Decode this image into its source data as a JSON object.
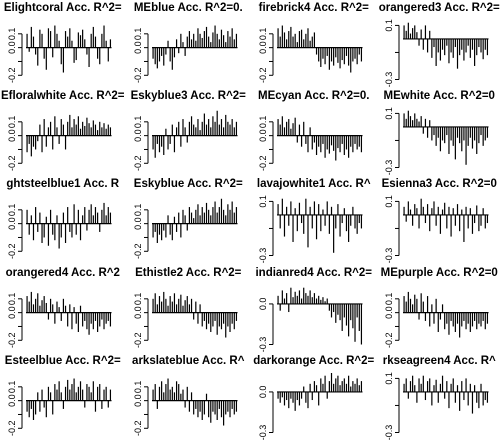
{
  "chart_data": [
    {
      "type": "bar",
      "title": "Elightcoral Acc. R^2=",
      "ylim": [
        -0.25,
        0.2
      ],
      "yticks": [
        -0.2,
        -0.1,
        0.0,
        0.1
      ],
      "ytick_labels": [
        "-0.2",
        "",
        "0.0",
        "0.1"
      ],
      "values": [
        0.1,
        -0.03,
        0.15,
        0.08,
        -0.05,
        -0.13,
        0.13,
        0.1,
        -0.08,
        -0.16,
        0.14,
        0.12,
        -0.07,
        0.16,
        0.1,
        0.05,
        -0.12,
        -0.18,
        0.12,
        0.08,
        0.14,
        0.05,
        -0.11,
        -0.09,
        0.11,
        0.09,
        0.13,
        0.06,
        -0.05,
        -0.14,
        0.1,
        0.15,
        0.08,
        -0.08,
        -0.12,
        0.1,
        0.16,
        0.05,
        -0.1,
        0.06
      ]
    },
    {
      "type": "bar",
      "title": "MEblue Acc. R^2=0.",
      "ylim": [
        -0.25,
        0.2
      ],
      "yticks": [
        -0.2,
        -0.1,
        0.0,
        0.1
      ],
      "ytick_labels": [
        "-0.2",
        "",
        "0.0",
        "0.1"
      ],
      "values": [
        -0.08,
        -0.12,
        -0.15,
        -0.1,
        -0.06,
        -0.13,
        -0.05,
        0.05,
        -0.1,
        -0.16,
        -0.07,
        0.06,
        -0.04,
        0.1,
        0.04,
        -0.06,
        0.08,
        0.12,
        0.06,
        0.1,
        0.05,
        0.14,
        0.1,
        0.07,
        0.12,
        0.15,
        0.08,
        0.04,
        0.11,
        0.16,
        0.1,
        0.06,
        0.13,
        0.09,
        0.04,
        0.12,
        0.08,
        0.14,
        0.06,
        0.1
      ]
    },
    {
      "type": "bar",
      "title": "firebrick4 Acc. R^2=",
      "ylim": [
        -0.25,
        0.2
      ],
      "yticks": [
        -0.2,
        -0.1,
        0.0,
        0.1
      ],
      "ytick_labels": [
        "-0.2",
        "",
        "0.0",
        "0.1"
      ],
      "values": [
        0.14,
        0.08,
        0.16,
        0.11,
        0.06,
        0.12,
        0.15,
        0.08,
        0.1,
        0.04,
        0.12,
        0.13,
        0.06,
        0.1,
        0.14,
        0.05,
        0.08,
        0.11,
        -0.05,
        -0.1,
        -0.14,
        -0.08,
        -0.12,
        -0.06,
        -0.16,
        -0.1,
        -0.13,
        -0.07,
        -0.11,
        -0.15,
        -0.09,
        -0.12,
        -0.06,
        -0.13,
        -0.18,
        -0.1,
        -0.08,
        -0.12,
        -0.05,
        -0.1
      ]
    },
    {
      "type": "bar",
      "title": "orangered3 Acc. R^2=",
      "ylim": [
        -0.32,
        0.14
      ],
      "yticks": [
        -0.3,
        -0.1,
        0.1
      ],
      "ytick_labels": [
        "-0.3",
        "",
        "0.1"
      ],
      "values": [
        0.1,
        0.06,
        0.12,
        0.04,
        0.08,
        0.1,
        0.05,
        -0.05,
        0.07,
        -0.08,
        0.1,
        -0.1,
        0.06,
        -0.14,
        -0.06,
        -0.2,
        -0.1,
        -0.16,
        -0.08,
        -0.12,
        -0.05,
        -0.18,
        -0.1,
        -0.14,
        -0.06,
        -0.22,
        -0.12,
        -0.08,
        -0.16,
        -0.1,
        -0.05,
        -0.14,
        -0.08,
        -0.2,
        -0.12,
        -0.06,
        -0.1,
        -0.15,
        -0.08,
        -0.12
      ]
    },
    {
      "type": "bar",
      "title": "Efloralwhite Acc. R^2=",
      "ylim": [
        -0.25,
        0.2
      ],
      "yticks": [
        -0.2,
        -0.1,
        0.0,
        0.1
      ],
      "ytick_labels": [
        "-0.2",
        "",
        "0.0",
        "0.1"
      ],
      "values": [
        -0.12,
        -0.06,
        -0.15,
        -0.08,
        -0.1,
        -0.04,
        0.08,
        -0.12,
        0.12,
        -0.08,
        0.06,
        0.1,
        -0.1,
        0.14,
        0.06,
        -0.06,
        0.12,
        0.08,
        -0.1,
        0.1,
        0.15,
        0.06,
        0.12,
        0.08,
        0.14,
        0.05,
        0.1,
        0.07,
        0.13,
        0.09,
        0.06,
        0.11,
        0.08,
        0.04,
        0.1,
        0.06,
        0.09,
        0.05,
        0.08,
        0.06
      ]
    },
    {
      "type": "bar",
      "title": "Eskyblue3 Acc. R^2= ",
      "ylim": [
        -0.25,
        0.2
      ],
      "yticks": [
        -0.2,
        -0.1,
        0.0,
        0.1
      ],
      "ytick_labels": [
        "-0.2",
        "",
        "0.0",
        "0.1"
      ],
      "values": [
        -0.1,
        -0.16,
        -0.06,
        -0.12,
        -0.08,
        -0.14,
        0.05,
        -0.1,
        -0.06,
        0.08,
        -0.12,
        0.06,
        0.1,
        -0.08,
        0.12,
        0.06,
        -0.05,
        0.1,
        0.14,
        0.08,
        0.06,
        0.12,
        0.04,
        0.1,
        0.16,
        0.08,
        0.12,
        0.06,
        0.14,
        0.1,
        0.18,
        0.08,
        0.12,
        0.06,
        0.15,
        0.1,
        0.08,
        0.12,
        0.06,
        0.1
      ]
    },
    {
      "type": "bar",
      "title": "MEcyan Acc. R^2=0.",
      "ylim": [
        -0.25,
        0.2
      ],
      "yticks": [
        -0.2,
        -0.1,
        0.0,
        0.1
      ],
      "ytick_labels": [
        "-0.2",
        "",
        "0.0",
        "0.1"
      ],
      "values": [
        0.12,
        0.08,
        0.14,
        0.06,
        0.1,
        0.12,
        0.05,
        0.09,
        0.13,
        -0.05,
        0.08,
        -0.08,
        0.1,
        -0.06,
        -0.12,
        0.06,
        -0.1,
        -0.05,
        -0.14,
        -0.08,
        -0.12,
        -0.06,
        -0.16,
        -0.1,
        -0.13,
        -0.07,
        -0.11,
        -0.18,
        -0.09,
        -0.12,
        -0.06,
        -0.14,
        -0.1,
        -0.16,
        -0.08,
        -0.12,
        -0.06,
        -0.1,
        -0.08,
        -0.12
      ]
    },
    {
      "type": "bar",
      "title": "MEwhite Acc. R^2=0",
      "ylim": [
        -0.32,
        0.14
      ],
      "yticks": [
        -0.3,
        -0.1,
        0.1
      ],
      "ytick_labels": [
        "-0.3",
        "",
        "0.1"
      ],
      "values": [
        0.1,
        0.06,
        0.12,
        0.08,
        0.05,
        0.1,
        0.06,
        0.04,
        0.08,
        -0.05,
        0.06,
        -0.08,
        0.05,
        -0.1,
        -0.06,
        -0.14,
        -0.08,
        -0.18,
        -0.1,
        -0.12,
        -0.06,
        -0.2,
        -0.1,
        -0.14,
        -0.24,
        -0.08,
        -0.12,
        -0.18,
        -0.1,
        -0.28,
        -0.14,
        -0.08,
        -0.16,
        -0.1,
        -0.2,
        -0.12,
        -0.06,
        -0.14,
        -0.1,
        -0.08
      ]
    },
    {
      "type": "bar",
      "title": "ghtsteelblue1 Acc. R",
      "ylim": [
        -0.25,
        0.2
      ],
      "yticks": [
        -0.2,
        -0.1,
        0.0,
        0.1
      ],
      "ytick_labels": [
        "-0.2",
        "",
        "0.0",
        "0.1"
      ],
      "values": [
        0.1,
        -0.08,
        0.06,
        -0.12,
        0.12,
        -0.06,
        0.08,
        -0.14,
        -0.1,
        0.05,
        -0.16,
        0.1,
        -0.08,
        -0.12,
        0.06,
        -0.18,
        -0.1,
        0.08,
        -0.14,
        0.12,
        -0.06,
        -0.1,
        0.14,
        -0.08,
        0.1,
        -0.12,
        0.06,
        0.12,
        -0.05,
        0.1,
        0.14,
        0.06,
        0.12,
        0.08,
        -0.06,
        0.1,
        0.15,
        0.06,
        0.12,
        0.08
      ]
    },
    {
      "type": "bar",
      "title": "Eskyblue Acc. R^2=",
      "ylim": [
        -0.25,
        0.2
      ],
      "yticks": [
        -0.2,
        -0.1,
        0.0,
        0.1
      ],
      "ytick_labels": [
        "-0.2",
        "",
        "0.0",
        "0.1"
      ],
      "values": [
        -0.1,
        -0.06,
        -0.14,
        -0.08,
        -0.12,
        -0.05,
        -0.1,
        0.06,
        -0.08,
        -0.12,
        0.05,
        -0.06,
        0.08,
        -0.1,
        0.1,
        0.06,
        -0.05,
        0.12,
        0.08,
        0.04,
        0.1,
        0.14,
        0.06,
        0.12,
        0.08,
        0.15,
        0.1,
        0.06,
        0.12,
        0.16,
        0.08,
        0.12,
        0.18,
        0.1,
        0.06,
        0.14,
        0.1,
        0.16,
        0.08,
        0.12
      ]
    },
    {
      "type": "bar",
      "title": "lavajowhite1 Acc. R^",
      "ylim": [
        -0.32,
        0.14
      ],
      "yticks": [
        -0.3,
        -0.1,
        0.1
      ],
      "ytick_labels": [
        "-0.3",
        "",
        "0.1"
      ],
      "values": [
        0.08,
        -0.1,
        0.12,
        -0.16,
        0.06,
        -0.08,
        0.1,
        -0.2,
        0.05,
        -0.12,
        0.09,
        -0.06,
        -0.14,
        0.12,
        -0.24,
        0.06,
        -0.1,
        0.1,
        -0.18,
        0.08,
        -0.12,
        0.04,
        -0.08,
        0.1,
        -0.14,
        0.06,
        -0.28,
        -0.1,
        0.08,
        -0.16,
        -0.06,
        0.05,
        -0.12,
        -0.2,
        -0.08,
        0.06,
        -0.1,
        -0.14,
        -0.06,
        -0.1
      ]
    },
    {
      "type": "bar",
      "title": "Esienna3 Acc. R^2=0",
      "ylim": [
        -0.32,
        0.14
      ],
      "yticks": [
        -0.3,
        -0.1,
        0.1
      ],
      "ytick_labels": [
        "-0.3",
        "",
        "0.1"
      ],
      "values": [
        0.06,
        -0.05,
        0.1,
        0.04,
        -0.08,
        0.08,
        0.05,
        -0.1,
        0.12,
        0.06,
        -0.06,
        0.08,
        -0.12,
        0.05,
        0.1,
        -0.08,
        0.06,
        -0.14,
        0.04,
        0.09,
        -0.1,
        0.06,
        -0.16,
        0.05,
        -0.08,
        0.08,
        -0.12,
        0.04,
        -0.2,
        0.06,
        -0.1,
        0.05,
        -0.14,
        -0.06,
        0.07,
        -0.12,
        -0.08,
        0.05,
        -0.1,
        -0.06
      ]
    },
    {
      "type": "bar",
      "title": "orangered4 Acc. R^2",
      "ylim": [
        -0.25,
        0.2
      ],
      "yticks": [
        -0.2,
        -0.1,
        0.0,
        0.1
      ],
      "ytick_labels": [
        "-0.2",
        "",
        "0.0",
        "0.1"
      ],
      "values": [
        0.12,
        0.08,
        0.15,
        0.06,
        0.1,
        0.14,
        0.05,
        0.09,
        0.12,
        0.07,
        -0.05,
        0.1,
        0.06,
        -0.08,
        0.08,
        0.04,
        -0.06,
        0.1,
        0.05,
        -0.1,
        0.06,
        -0.12,
        0.04,
        -0.08,
        -0.14,
        0.05,
        -0.1,
        -0.06,
        -0.12,
        -0.16,
        -0.08,
        -0.12,
        -0.06,
        -0.14,
        -0.1,
        -0.05,
        -0.12,
        -0.08,
        -0.06,
        -0.1
      ]
    },
    {
      "type": "bar",
      "title": "Ethistle2 Acc. R^2=",
      "ylim": [
        -0.25,
        0.2
      ],
      "yticks": [
        -0.2,
        -0.1,
        0.0,
        0.1
      ],
      "ytick_labels": [
        "-0.2",
        "",
        "0.0",
        "0.1"
      ],
      "values": [
        0.1,
        0.14,
        0.06,
        0.12,
        0.08,
        0.15,
        0.1,
        0.05,
        0.12,
        0.08,
        0.14,
        0.06,
        0.1,
        0.13,
        0.05,
        0.09,
        0.12,
        0.06,
        0.1,
        -0.05,
        0.08,
        -0.08,
        0.06,
        -0.1,
        -0.06,
        -0.12,
        -0.08,
        -0.14,
        -0.1,
        -0.06,
        -0.16,
        -0.1,
        -0.12,
        -0.08,
        -0.18,
        -0.1,
        -0.14,
        -0.08,
        -0.12,
        -0.06
      ]
    },
    {
      "type": "bar",
      "title": "indianred4 Acc. R^2=",
      "ylim": [
        -0.32,
        0.14
      ],
      "yticks": [
        -0.3,
        0.0
      ],
      "ytick_labels": [
        "-0.3",
        "0.0"
      ],
      "values": [
        0.06,
        -0.05,
        0.1,
        0.04,
        0.08,
        -0.06,
        0.12,
        0.05,
        0.09,
        0.06,
        0.1,
        0.04,
        0.12,
        0.08,
        0.06,
        0.1,
        0.05,
        0.08,
        0.04,
        0.06,
        0.03,
        0.05,
        0.02,
        0.04,
        -0.05,
        -0.1,
        -0.06,
        -0.14,
        -0.08,
        -0.12,
        -0.2,
        -0.1,
        -0.16,
        -0.24,
        -0.12,
        -0.18,
        -0.28,
        -0.1,
        -0.2,
        -0.3
      ]
    },
    {
      "type": "bar",
      "title": "MEpurple Acc. R^2=0",
      "ylim": [
        -0.25,
        0.2
      ],
      "yticks": [
        -0.2,
        -0.1,
        0.0,
        0.1
      ],
      "ytick_labels": [
        "-0.2",
        "",
        "0.0",
        "0.1"
      ],
      "values": [
        0.12,
        0.08,
        0.15,
        0.1,
        0.06,
        0.13,
        0.1,
        -0.05,
        0.14,
        0.08,
        -0.06,
        0.12,
        -0.1,
        0.06,
        -0.08,
        0.1,
        -0.14,
        -0.05,
        0.06,
        -0.12,
        -0.08,
        -0.16,
        -0.06,
        -0.1,
        -0.14,
        -0.08,
        -0.18,
        -0.1,
        -0.06,
        -0.12,
        -0.08,
        -0.14,
        -0.1,
        -0.06,
        -0.12,
        -0.08,
        -0.1,
        -0.06,
        -0.12,
        -0.08
      ]
    },
    {
      "type": "bar",
      "title": "Esteelblue Acc. R^2=",
      "ylim": [
        -0.25,
        0.2
      ],
      "yticks": [
        -0.2,
        -0.1,
        0.0,
        0.1
      ],
      "ytick_labels": [
        "-0.2",
        "",
        "0.0",
        "0.1"
      ],
      "values": [
        -0.08,
        -0.12,
        -0.06,
        -0.14,
        -0.1,
        0.06,
        -0.08,
        0.08,
        -0.05,
        -0.12,
        0.1,
        0.06,
        -0.1,
        0.12,
        0.08,
        0.14,
        0.06,
        -0.06,
        0.1,
        0.15,
        0.08,
        0.12,
        0.16,
        0.06,
        0.1,
        0.14,
        0.08,
        -0.05,
        0.12,
        0.1,
        0.06,
        0.14,
        -0.08,
        0.1,
        0.12,
        -0.06,
        0.08,
        0.1,
        -0.05,
        0.08
      ]
    },
    {
      "type": "bar",
      "title": "arkslateblue Acc. R^",
      "ylim": [
        -0.25,
        0.2
      ],
      "yticks": [
        -0.2,
        -0.1,
        0.0,
        0.1
      ],
      "ytick_labels": [
        "-0.2",
        "",
        "0.0",
        "0.1"
      ],
      "values": [
        0.08,
        0.12,
        -0.06,
        0.1,
        0.14,
        0.06,
        0.12,
        0.16,
        0.08,
        0.1,
        0.06,
        0.14,
        0.12,
        0.05,
        0.08,
        -0.05,
        0.1,
        -0.08,
        0.06,
        -0.1,
        -0.06,
        -0.12,
        -0.08,
        -0.14,
        -0.1,
        0.05,
        -0.12,
        -0.16,
        -0.08,
        -0.1,
        -0.14,
        -0.06,
        -0.12,
        -0.18,
        -0.1,
        -0.08,
        -0.12,
        -0.06,
        -0.1,
        -0.08
      ]
    },
    {
      "type": "bar",
      "title": "darkorange Acc. R^2=",
      "ylim": [
        -0.32,
        0.14
      ],
      "yticks": [
        -0.3,
        0.0
      ],
      "ytick_labels": [
        "-0.3",
        "0.0"
      ],
      "values": [
        -0.05,
        -0.08,
        -0.04,
        -0.1,
        -0.06,
        -0.12,
        -0.05,
        -0.08,
        -0.14,
        -0.06,
        -0.1,
        -0.05,
        0.04,
        -0.08,
        -0.12,
        0.06,
        -0.06,
        0.08,
        0.05,
        -0.1,
        0.1,
        0.06,
        0.12,
        -0.05,
        0.08,
        0.14,
        0.06,
        0.1,
        0.12,
        0.05,
        0.08,
        0.1,
        0.06,
        0.12,
        0.04,
        0.08,
        0.06,
        0.1,
        0.05,
        0.08
      ]
    },
    {
      "type": "bar",
      "title": "rkseagreen4 Acc. R^",
      "ylim": [
        -0.32,
        0.14
      ],
      "yticks": [
        -0.3,
        -0.1,
        0.1
      ],
      "ytick_labels": [
        "-0.3",
        "",
        "0.1"
      ],
      "values": [
        0.06,
        0.1,
        -0.05,
        0.08,
        0.12,
        0.05,
        -0.08,
        0.1,
        0.06,
        0.12,
        -0.06,
        0.08,
        0.1,
        -0.1,
        0.05,
        0.09,
        -0.08,
        0.06,
        0.12,
        -0.05,
        0.08,
        -0.12,
        0.06,
        0.1,
        -0.08,
        0.05,
        -0.14,
        0.08,
        -0.06,
        0.1,
        -0.1,
        0.06,
        -0.16,
        0.05,
        -0.08,
        -0.12,
        0.06,
        -0.1,
        -0.06,
        -0.08
      ]
    }
  ]
}
